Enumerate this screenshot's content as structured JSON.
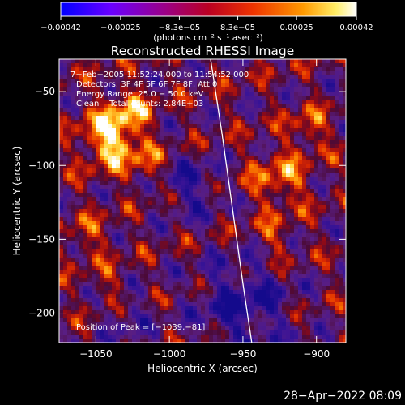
{
  "chart_data": {
    "type": "heatmap",
    "title": "Reconstructed RHESSI Image",
    "xlabel": "Heliocentric X (arcsec)",
    "ylabel": "Heliocentric Y (arcsec)",
    "xlim": [
      -1075,
      -880
    ],
    "ylim": [
      -220,
      -28
    ],
    "x_ticks": [
      -1050,
      -1000,
      -950,
      -900
    ],
    "x_tick_labels": [
      "−1050",
      "−1000",
      "−950",
      "−900"
    ],
    "y_ticks": [
      -50,
      -100,
      -150,
      -200
    ],
    "y_tick_labels": [
      "−50",
      "−100",
      "−150",
      "−200"
    ],
    "colorbar": {
      "min": -0.00042,
      "max": 0.00042,
      "ticks": [
        -0.00042,
        -0.00025,
        -8.3e-05,
        8.3e-05,
        0.00025,
        0.00042
      ],
      "tick_labels": [
        "−0.00042",
        "−0.00025",
        "−8.3e−05",
        "8.3e−05",
        "0.00025",
        "0.00042"
      ],
      "label": "(photons cm⁻² s⁻¹ asec⁻²)",
      "colors": [
        "#0000ff",
        "#7a00ff",
        "#aa0044",
        "#dd2200",
        "#ff7700",
        "#ffdd55",
        "#ffffff"
      ]
    },
    "annotations": [
      "7−Feb−2005 11:52:24.000 to 11:54:52.000",
      "Detectors: 3F 4F 5F 6F 7F 8F, Att 0",
      "Energy Range: 25.0 − 50.0 keV",
      "Clean    Total counts: 2.84E+03",
      "Position of Peak = [−1039,−81]"
    ],
    "peak": [
      -1039,
      -81
    ],
    "limb_curve": [
      [
        -972,
        -28
      ],
      [
        -964,
        -80
      ],
      [
        -957,
        -130
      ],
      [
        -950,
        -180
      ],
      [
        -944,
        -220
      ]
    ],
    "grid": false
  },
  "timestamp": "28−Apr−2022 08:09"
}
